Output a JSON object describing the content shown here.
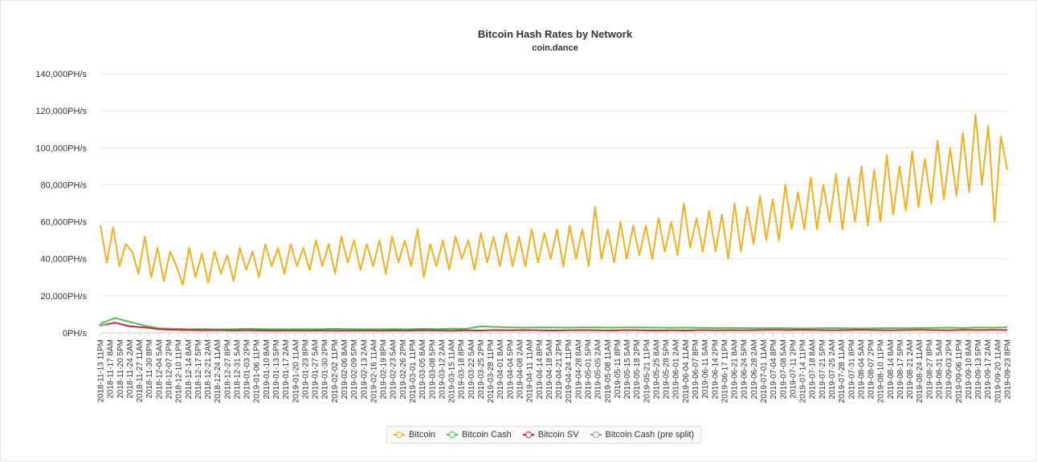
{
  "chart_data": {
    "type": "line",
    "title": "Bitcoin Hash Rates by Network",
    "subtitle": "coin.dance",
    "xlabel": "",
    "ylabel": "",
    "ylim": [
      0,
      140000
    ],
    "y_unit": "PH/s",
    "y_ticks": [
      "0PH/s",
      "20,000PH/s",
      "40,000PH/s",
      "60,000PH/s",
      "80,000PH/s",
      "100,000PH/s",
      "120,000PH/s",
      "140,000PH/s"
    ],
    "x_start": "2018-11-13",
    "x_end": "2019-09-23",
    "grid": true,
    "legend_position": "bottom",
    "x_tick_labels": [
      "2018-11-13 11PM",
      "2018-11-17 8AM",
      "2018-11-20 5PM",
      "2018-11-24 2AM",
      "2018-11-27 11AM",
      "2018-11-30 8PM",
      "2018-12-04 5AM",
      "2018-12-07 2PM",
      "2018-12-10 11PM",
      "2018-12-14 8AM",
      "2018-12-17 5PM",
      "2018-12-21 2AM",
      "2018-12-24 11AM",
      "2018-12-27 8PM",
      "2018-12-31 5AM",
      "2019-01-03 2PM",
      "2019-01-06 11PM",
      "2019-01-10 8AM",
      "2019-01-13 5PM",
      "2019-01-17 2AM",
      "2019-01-20 11AM",
      "2019-01-23 8PM",
      "2019-01-27 5AM",
      "2019-01-30 2PM",
      "2019-02-02 11PM",
      "2019-02-06 8AM",
      "2019-02-09 5PM",
      "2019-02-13 2AM",
      "2019-02-16 11AM",
      "2019-02-19 8PM",
      "2019-02-23 5AM",
      "2019-02-26 2PM",
      "2019-03-01 11PM",
      "2019-03-05 8AM",
      "2019-03-08 5PM",
      "2019-03-12 2AM",
      "2019-03-15 11AM",
      "2019-03-18 8PM",
      "2019-03-22 5AM",
      "2019-03-25 2PM",
      "2019-03-28 11PM",
      "2019-04-01 8AM",
      "2019-04-04 5PM",
      "2019-04-08 2AM",
      "2019-04-11 11AM",
      "2019-04-14 8PM",
      "2019-04-18 5AM",
      "2019-04-21 2PM",
      "2019-04-24 11PM",
      "2019-04-28 8AM",
      "2019-05-01 5PM",
      "2019-05-05 2AM",
      "2019-05-08 11AM",
      "2019-05-11 8PM",
      "2019-05-15 5AM",
      "2019-05-18 2PM",
      "2019-05-21 11PM",
      "2019-05-25 8AM",
      "2019-05-28 5PM",
      "2019-06-01 2AM",
      "2019-06-04 11AM",
      "2019-06-07 8PM",
      "2019-06-11 5AM",
      "2019-06-14 2PM",
      "2019-06-17 11PM",
      "2019-06-21 8AM",
      "2019-06-24 5PM",
      "2019-06-28 2AM",
      "2019-07-01 11AM",
      "2019-07-04 8PM",
      "2019-07-08 5AM",
      "2019-07-11 2PM",
      "2019-07-14 11PM",
      "2019-07-18 8AM",
      "2019-07-21 5PM",
      "2019-07-25 2AM",
      "2019-07-28 11AM",
      "2019-07-31 8PM",
      "2019-08-04 5AM",
      "2019-08-07 2PM",
      "2019-08-10 11PM",
      "2019-08-14 8AM",
      "2019-08-17 5PM",
      "2019-08-21 2AM",
      "2019-08-24 11AM",
      "2019-08-27 8PM",
      "2019-08-31 5AM",
      "2019-09-03 2PM",
      "2019-09-06 11PM",
      "2019-09-10 8AM",
      "2019-09-13 5PM",
      "2019-09-17 2AM",
      "2019-09-20 11AM",
      "2019-09-23 8PM"
    ],
    "series": [
      {
        "name": "Bitcoin",
        "color": "#f0b020",
        "values": [
          58000,
          38000,
          57000,
          36000,
          48000,
          44000,
          32000,
          52000,
          30000,
          46000,
          28000,
          44000,
          36000,
          26000,
          46000,
          30000,
          43000,
          27000,
          44000,
          32000,
          42000,
          28000,
          46000,
          34000,
          44000,
          30000,
          48000,
          36000,
          46000,
          32000,
          48000,
          36000,
          46000,
          34000,
          50000,
          36000,
          48000,
          32000,
          52000,
          38000,
          50000,
          34000,
          48000,
          36000,
          50000,
          32000,
          52000,
          38000,
          50000,
          36000,
          56000,
          30000,
          48000,
          36000,
          50000,
          34000,
          52000,
          40000,
          50000,
          34000,
          54000,
          38000,
          52000,
          36000,
          54000,
          36000,
          52000,
          36000,
          56000,
          38000,
          54000,
          40000,
          56000,
          36000,
          58000,
          40000,
          56000,
          36000,
          68000,
          40000,
          56000,
          38000,
          60000,
          40000,
          58000,
          42000,
          58000,
          40000,
          62000,
          44000,
          60000,
          42000,
          70000,
          46000,
          62000,
          44000,
          66000,
          44000,
          64000,
          40000,
          70000,
          44000,
          68000,
          48000,
          74000,
          50000,
          72000,
          50000,
          80000,
          56000,
          76000,
          56000,
          84000,
          56000,
          80000,
          60000,
          86000,
          56000,
          84000,
          60000,
          90000,
          58000,
          88000,
          60000,
          96000,
          64000,
          90000,
          66000,
          98000,
          68000,
          94000,
          70000,
          104000,
          72000,
          100000,
          74000,
          108000,
          76000,
          118000,
          80000,
          112000,
          60000,
          106000,
          88000
        ]
      },
      {
        "name": "Bitcoin Cash",
        "color": "#50c050",
        "values": [
          5000,
          8000,
          6000,
          4000,
          2500,
          2200,
          2000,
          2100,
          1900,
          2000,
          2200,
          2100,
          2000,
          2000,
          2100,
          2000,
          2200,
          2100,
          2000,
          2000,
          2100,
          2000,
          2200,
          2100,
          2300,
          2200,
          3500,
          3200,
          3000,
          2800,
          3000,
          2900,
          2800,
          3000,
          2900,
          2800,
          3000,
          2900,
          2800,
          2700,
          2800,
          2700,
          2600,
          2700,
          2600,
          2500,
          2600,
          2500,
          2400,
          2500,
          2600,
          2500,
          2400,
          2500,
          2600,
          2500,
          2600,
          2700,
          2800,
          2600,
          2900,
          2800,
          3000
        ]
      },
      {
        "name": "Bitcoin SV",
        "color": "#d0203a",
        "values": [
          4000,
          5500,
          3500,
          3000,
          2000,
          1600,
          1500,
          1400,
          1500,
          1300,
          1400,
          1300,
          1200,
          1300,
          1200,
          1300,
          1200,
          1200,
          1300,
          1200,
          1300,
          1200,
          1400,
          1300,
          1200,
          1400,
          1300,
          1500,
          1400,
          1500,
          1400,
          1300,
          1400,
          1500,
          1400,
          1300,
          1500,
          1400,
          1300,
          1400,
          1300,
          1500,
          1400,
          1500,
          1400,
          1500,
          1600,
          1500,
          1600,
          1500,
          1400,
          1500,
          1600,
          1500,
          1400,
          1500,
          1600,
          1500,
          1400,
          1600,
          1500,
          1600,
          1500
        ]
      },
      {
        "name": "Bitcoin Cash (pre split)",
        "color": "#999999",
        "values": [
          4200,
          4400,
          4300
        ]
      }
    ]
  }
}
